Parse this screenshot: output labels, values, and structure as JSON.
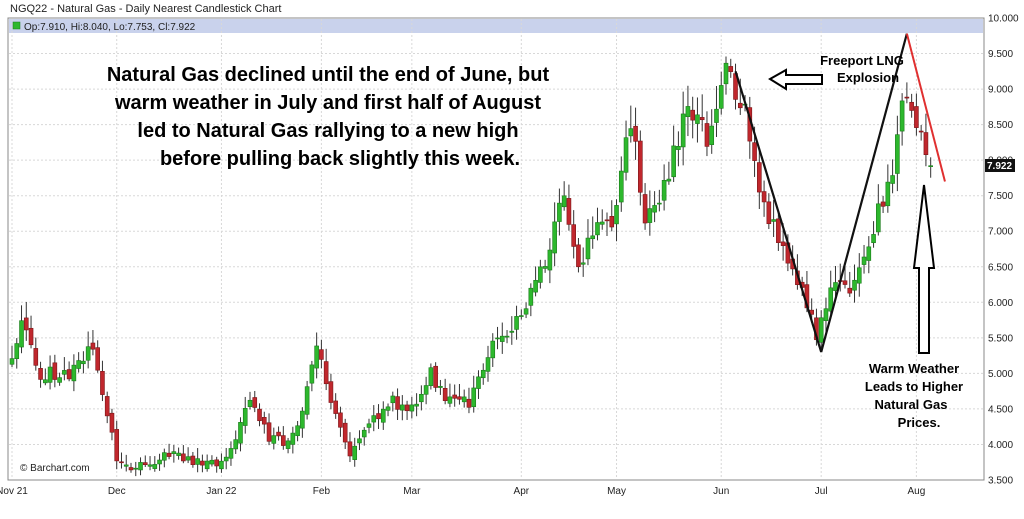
{
  "title": "NGQ22 - Natural Gas - Daily Nearest Candlestick Chart",
  "ohlc_label": "Op:7.910, Hi:8.040, Lo:7.753, Cl:7.922",
  "credit": "© Barchart.com",
  "headline": [
    "Natural Gas declined until the end of June, but",
    "warm weather in July and first half of August",
    "led to Natural Gas rallying to a new high",
    "before pulling back slightly this week."
  ],
  "annotation_freeport": [
    "Freeport LNG",
    "Explosion"
  ],
  "annotation_weather": [
    "Warm Weather",
    "Leads to Higher",
    "Natural Gas",
    "Prices."
  ],
  "last_price_label": "7.922",
  "colors": {
    "up": "#2db82d",
    "down": "#c0272d",
    "header_band": "#c9d2ec",
    "grid": "#d8d8d8",
    "trend_black": "#111111",
    "trend_red": "#e03030",
    "last_price_bg": "#111111"
  },
  "chart_data": {
    "type": "candlestick",
    "title": "NGQ22 - Natural Gas - Daily Nearest Candlestick Chart",
    "ylim": [
      3.5,
      10.0
    ],
    "y_ticks": [
      "3.500",
      "4.000",
      "4.500",
      "5.000",
      "5.500",
      "6.000",
      "6.500",
      "7.000",
      "7.500",
      "8.000",
      "8.500",
      "9.000",
      "9.500",
      "10.000"
    ],
    "x_ticks": [
      {
        "label": "Nov 21",
        "index": 0
      },
      {
        "label": "Dec",
        "index": 22
      },
      {
        "label": "Jan 22",
        "index": 44
      },
      {
        "label": "Feb",
        "index": 65
      },
      {
        "label": "Mar",
        "index": 84
      },
      {
        "label": "Apr",
        "index": 107
      },
      {
        "label": "May",
        "index": 127
      },
      {
        "label": "Jun",
        "index": 149
      },
      {
        "label": "Jul",
        "index": 170
      },
      {
        "label": "Aug",
        "index": 190
      }
    ],
    "anchors": [
      [
        0,
        5.2
      ],
      [
        2,
        5.75
      ],
      [
        6,
        5.0
      ],
      [
        12,
        5.0
      ],
      [
        17,
        5.4
      ],
      [
        20,
        4.4
      ],
      [
        22,
        3.8
      ],
      [
        25,
        3.65
      ],
      [
        33,
        3.85
      ],
      [
        40,
        3.75
      ],
      [
        43,
        3.7
      ],
      [
        46,
        3.9
      ],
      [
        50,
        4.7
      ],
      [
        54,
        4.1
      ],
      [
        58,
        4.0
      ],
      [
        61,
        4.4
      ],
      [
        64,
        5.4
      ],
      [
        67,
        4.6
      ],
      [
        71,
        3.9
      ],
      [
        75,
        4.3
      ],
      [
        80,
        4.6
      ],
      [
        84,
        4.5
      ],
      [
        88,
        5.0
      ],
      [
        91,
        4.6
      ],
      [
        96,
        4.6
      ],
      [
        101,
        5.4
      ],
      [
        105,
        5.6
      ],
      [
        108,
        6.0
      ],
      [
        112,
        6.6
      ],
      [
        116,
        7.5
      ],
      [
        119,
        6.5
      ],
      [
        124,
        7.2
      ],
      [
        126,
        7.0
      ],
      [
        130,
        8.6
      ],
      [
        133,
        7.2
      ],
      [
        137,
        7.6
      ],
      [
        142,
        8.8
      ],
      [
        146,
        8.3
      ],
      [
        150,
        9.3
      ],
      [
        154,
        8.7
      ],
      [
        157,
        7.5
      ],
      [
        162,
        6.8
      ],
      [
        166,
        6.2
      ],
      [
        169,
        5.5
      ],
      [
        172,
        6.2
      ],
      [
        176,
        6.2
      ],
      [
        179,
        6.6
      ],
      [
        182,
        7.3
      ],
      [
        185,
        7.8
      ],
      [
        187,
        8.8
      ],
      [
        188,
        9.0
      ],
      [
        190,
        8.5
      ],
      [
        192,
        8.2
      ],
      [
        193,
        7.92
      ]
    ],
    "freeport_drop_index": 154,
    "trend_lines": {
      "black_down": {
        "from": [
          152,
          9.25
        ],
        "to": [
          170,
          5.3
        ]
      },
      "black_up": {
        "from": [
          170,
          5.3
        ],
        "to": [
          188,
          9.78
        ]
      },
      "red_down": {
        "from": [
          188,
          9.78
        ],
        "to": [
          196,
          7.7
        ]
      }
    },
    "last_close": 7.922
  }
}
